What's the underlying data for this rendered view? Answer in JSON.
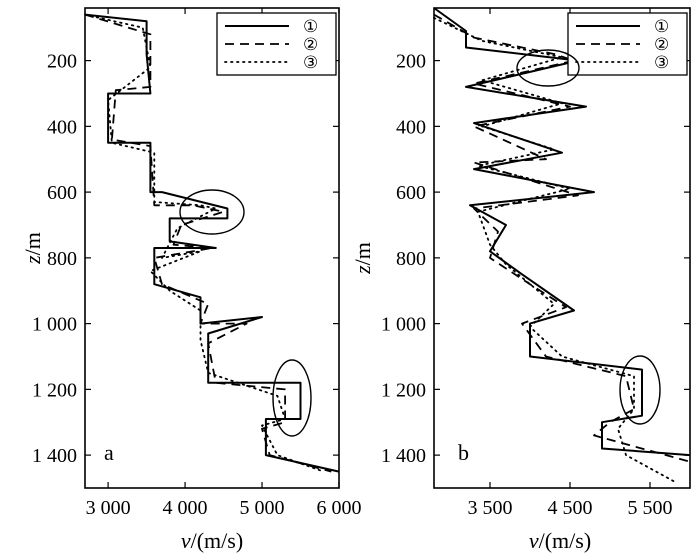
{
  "chart_data": [
    {
      "type": "line",
      "panel_label": "a",
      "xlabel_var": "v",
      "xlabel_unit": "/(m/s)",
      "ylabel_var": "z",
      "ylabel_unit": "/m",
      "xlim": [
        2700,
        6000
      ],
      "ylim": [
        1500,
        40
      ],
      "xticks": [
        3000,
        4000,
        5000,
        6000
      ],
      "xtick_labels": [
        "3 000",
        "4 000",
        "5 000",
        "6 000"
      ],
      "yticks": [
        200,
        400,
        600,
        800,
        1000,
        1200,
        1400
      ],
      "ytick_labels": [
        "200",
        "400",
        "600",
        "800",
        "1 000",
        "1 200",
        "1 400"
      ],
      "legend_position": "top-right",
      "series": [
        {
          "name": "①",
          "style": "solid",
          "points": [
            [
              2700,
              60
            ],
            [
              3500,
              80
            ],
            [
              3500,
              180
            ],
            [
              3550,
              300
            ],
            [
              3000,
              300
            ],
            [
              3000,
              450
            ],
            [
              3550,
              450
            ],
            [
              3550,
              600
            ],
            [
              3700,
              600
            ],
            [
              4550,
              650
            ],
            [
              4550,
              680
            ],
            [
              3800,
              680
            ],
            [
              3800,
              750
            ],
            [
              4400,
              770
            ],
            [
              3600,
              770
            ],
            [
              3600,
              880
            ],
            [
              4200,
              920
            ],
            [
              4200,
              1000
            ],
            [
              5000,
              980
            ],
            [
              4300,
              1030
            ],
            [
              4300,
              1180
            ],
            [
              5500,
              1180
            ],
            [
              5500,
              1290
            ],
            [
              5050,
              1290
            ],
            [
              5050,
              1400
            ],
            [
              6000,
              1450
            ]
          ]
        },
        {
          "name": "②",
          "style": "dashed",
          "points": [
            [
              2700,
              60
            ],
            [
              3550,
              120
            ],
            [
              3550,
              280
            ],
            [
              3100,
              290
            ],
            [
              3050,
              440
            ],
            [
              3550,
              460
            ],
            [
              3600,
              640
            ],
            [
              4100,
              640
            ],
            [
              4500,
              660
            ],
            [
              3950,
              700
            ],
            [
              3850,
              760
            ],
            [
              4350,
              770
            ],
            [
              3600,
              800
            ],
            [
              3700,
              880
            ],
            [
              4300,
              940
            ],
            [
              4200,
              1000
            ],
            [
              4800,
              1000
            ],
            [
              4300,
              1060
            ],
            [
              4400,
              1180
            ],
            [
              5300,
              1200
            ],
            [
              5300,
              1300
            ],
            [
              5000,
              1320
            ],
            [
              5100,
              1400
            ],
            [
              5900,
              1450
            ]
          ]
        },
        {
          "name": "③",
          "style": "dotted",
          "points": [
            [
              2700,
              60
            ],
            [
              3450,
              100
            ],
            [
              3550,
              220
            ],
            [
              3000,
              320
            ],
            [
              3050,
              450
            ],
            [
              3600,
              480
            ],
            [
              3600,
              630
            ],
            [
              4200,
              640
            ],
            [
              4400,
              650
            ],
            [
              3900,
              710
            ],
            [
              3700,
              800
            ],
            [
              4200,
              780
            ],
            [
              3550,
              840
            ],
            [
              3800,
              900
            ],
            [
              4200,
              960
            ],
            [
              4200,
              1050
            ],
            [
              4300,
              1150
            ],
            [
              5200,
              1220
            ],
            [
              5300,
              1290
            ],
            [
              5000,
              1310
            ],
            [
              5200,
              1400
            ],
            [
              5800,
              1450
            ]
          ]
        }
      ]
    },
    {
      "type": "line",
      "panel_label": "b",
      "xlabel_var": "v",
      "xlabel_unit": "/(m/s)",
      "ylabel_var": "z",
      "ylabel_unit": "/m",
      "xlim": [
        2800,
        6000
      ],
      "ylim": [
        1500,
        40
      ],
      "xticks": [
        3500,
        4500,
        5500
      ],
      "xtick_labels": [
        "3 500",
        "4 500",
        "5 500"
      ],
      "yticks": [
        200,
        400,
        600,
        800,
        1000,
        1200,
        1400
      ],
      "ytick_labels": [
        "200",
        "400",
        "600",
        "800",
        "1 000",
        "1 200",
        "1 400"
      ],
      "legend_position": "top-right",
      "series": [
        {
          "name": "①",
          "style": "solid",
          "points": [
            [
              2800,
              40
            ],
            [
              3200,
              110
            ],
            [
              3200,
              160
            ],
            [
              4600,
              200
            ],
            [
              3200,
              280
            ],
            [
              4700,
              340
            ],
            [
              3300,
              390
            ],
            [
              4400,
              480
            ],
            [
              3300,
              530
            ],
            [
              4800,
              600
            ],
            [
              3250,
              640
            ],
            [
              3700,
              700
            ],
            [
              3500,
              780
            ],
            [
              3900,
              850
            ],
            [
              4550,
              960
            ],
            [
              4000,
              1000
            ],
            [
              4000,
              1100
            ],
            [
              5400,
              1140
            ],
            [
              5400,
              1280
            ],
            [
              4900,
              1300
            ],
            [
              4900,
              1380
            ],
            [
              6000,
              1400
            ]
          ]
        },
        {
          "name": "②",
          "style": "dashed",
          "points": [
            [
              2800,
              60
            ],
            [
              3300,
              130
            ],
            [
              4300,
              180
            ],
            [
              4550,
              200
            ],
            [
              3300,
              270
            ],
            [
              4500,
              340
            ],
            [
              3300,
              400
            ],
            [
              4200,
              500
            ],
            [
              3300,
              510
            ],
            [
              4600,
              610
            ],
            [
              3300,
              650
            ],
            [
              3600,
              720
            ],
            [
              3500,
              800
            ],
            [
              4000,
              880
            ],
            [
              4450,
              950
            ],
            [
              3900,
              1000
            ],
            [
              4200,
              1100
            ],
            [
              5200,
              1160
            ],
            [
              5300,
              1260
            ],
            [
              5000,
              1300
            ],
            [
              4800,
              1340
            ],
            [
              6000,
              1420
            ]
          ]
        },
        {
          "name": "③",
          "style": "dotted",
          "points": [
            [
              2800,
              70
            ],
            [
              3400,
              140
            ],
            [
              4400,
              190
            ],
            [
              3400,
              260
            ],
            [
              4400,
              330
            ],
            [
              3400,
              400
            ],
            [
              4300,
              470
            ],
            [
              3350,
              520
            ],
            [
              4500,
              590
            ],
            [
              3350,
              660
            ],
            [
              3500,
              760
            ],
            [
              3700,
              820
            ],
            [
              4300,
              940
            ],
            [
              4000,
              1010
            ],
            [
              4400,
              1100
            ],
            [
              5300,
              1160
            ],
            [
              5300,
              1260
            ],
            [
              5100,
              1320
            ],
            [
              5200,
              1400
            ],
            [
              5800,
              1480
            ]
          ]
        }
      ]
    }
  ]
}
